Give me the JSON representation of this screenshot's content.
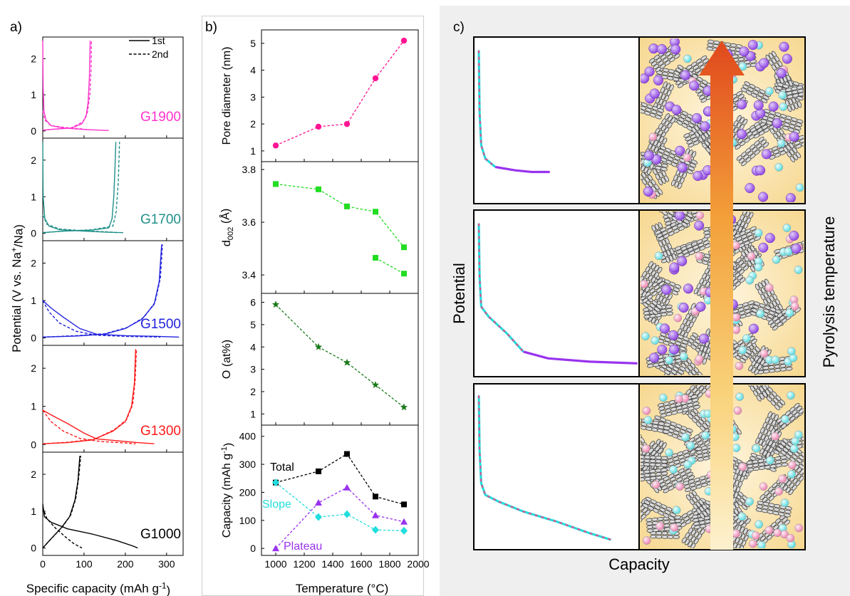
{
  "panel_labels": {
    "a": "a)",
    "b": "b)",
    "c": "c)"
  },
  "colors": {
    "g1900": "#ff33cc",
    "g1700": "#20908a",
    "g1500": "#2222dd",
    "g1300": "#ff1a1a",
    "g1000": "#000000",
    "pore": "#ff1493",
    "d002": "#22dd22",
    "oxygen": "#1a7a1a",
    "total": "#000000",
    "slope": "#22dddd",
    "plateau": "#9933ee",
    "ion_purple": "#9b59e6",
    "ion_cyan": "#7fe8ea",
    "ion_pink": "#f49ac1",
    "arrow_top": "#e0481c",
    "arrow_bottom": "#fbe9b8"
  },
  "chart_data": [
    {
      "id": "panel-a",
      "type": "line",
      "xlabel": "Specific capacity (mAh g",
      "xlabel_sup": "-1",
      "xlabel_end": ")",
      "ylabel": "Potential (V vs. Na",
      "ylabel_sup": "+",
      "ylabel_end": "/Na)",
      "xticks": [
        0,
        100,
        200,
        300
      ],
      "xlim": [
        0,
        340
      ],
      "ylim": [
        -0.2,
        2.6
      ],
      "yticks": [
        0,
        1,
        2
      ],
      "legend": [
        "1st",
        "2nd"
      ],
      "legend_position": "top-right",
      "samples": [
        {
          "name": "G1900",
          "first_discharge": [
            [
              0,
              2.5
            ],
            [
              1,
              1.2
            ],
            [
              3,
              0.55
            ],
            [
              8,
              0.3
            ],
            [
              20,
              0.15
            ],
            [
              50,
              0.08
            ],
            [
              100,
              0.04
            ],
            [
              160,
              0.01
            ]
          ],
          "first_charge": [
            [
              0,
              0.02
            ],
            [
              30,
              0.05
            ],
            [
              70,
              0.08
            ],
            [
              95,
              0.2
            ],
            [
              105,
              0.4
            ],
            [
              110,
              0.8
            ],
            [
              113,
              1.5
            ],
            [
              115,
              2.5
            ]
          ],
          "second_discharge": [
            [
              0,
              0.55
            ],
            [
              5,
              0.3
            ],
            [
              20,
              0.15
            ],
            [
              50,
              0.1
            ],
            [
              80,
              0.07
            ],
            [
              100,
              0.05
            ],
            [
              112,
              0.02
            ]
          ],
          "second_charge": [
            [
              0,
              0.02
            ],
            [
              30,
              0.05
            ],
            [
              70,
              0.09
            ],
            [
              97,
              0.25
            ],
            [
              108,
              0.5
            ],
            [
              114,
              1.0
            ],
            [
              117,
              1.7
            ],
            [
              118,
              2.5
            ]
          ]
        },
        {
          "name": "G1700",
          "first_discharge": [
            [
              0,
              2.5
            ],
            [
              1,
              1.0
            ],
            [
              5,
              0.4
            ],
            [
              15,
              0.2
            ],
            [
              40,
              0.1
            ],
            [
              100,
              0.06
            ],
            [
              160,
              0.03
            ],
            [
              195,
              0.02
            ]
          ],
          "first_charge": [
            [
              0,
              0.02
            ],
            [
              50,
              0.06
            ],
            [
              120,
              0.09
            ],
            [
              160,
              0.15
            ],
            [
              168,
              0.4
            ],
            [
              172,
              1.0
            ],
            [
              175,
              1.8
            ],
            [
              177,
              2.5
            ]
          ],
          "second_discharge": [
            [
              0,
              0.5
            ],
            [
              10,
              0.25
            ],
            [
              40,
              0.12
            ],
            [
              100,
              0.07
            ],
            [
              160,
              0.04
            ],
            [
              180,
              0.02
            ]
          ],
          "second_charge": [
            [
              0,
              0.02
            ],
            [
              50,
              0.06
            ],
            [
              120,
              0.1
            ],
            [
              170,
              0.2
            ],
            [
              178,
              0.6
            ],
            [
              183,
              1.4
            ],
            [
              186,
              2.5
            ]
          ]
        },
        {
          "name": "G1500",
          "first_discharge": [
            [
              0,
              1.0
            ],
            [
              20,
              0.8
            ],
            [
              50,
              0.55
            ],
            [
              90,
              0.25
            ],
            [
              130,
              0.1
            ],
            [
              200,
              0.06
            ],
            [
              280,
              0.04
            ],
            [
              330,
              0.02
            ]
          ],
          "first_charge": [
            [
              0,
              0.02
            ],
            [
              80,
              0.05
            ],
            [
              150,
              0.1
            ],
            [
              200,
              0.25
            ],
            [
              240,
              0.5
            ],
            [
              270,
              0.9
            ],
            [
              282,
              1.5
            ],
            [
              288,
              2.5
            ]
          ],
          "second_discharge": [
            [
              0,
              1.0
            ],
            [
              15,
              0.7
            ],
            [
              40,
              0.4
            ],
            [
              80,
              0.18
            ],
            [
              130,
              0.07
            ],
            [
              200,
              0.04
            ],
            [
              285,
              0.02
            ]
          ],
          "second_charge": [
            [
              0,
              0.02
            ],
            [
              80,
              0.06
            ],
            [
              150,
              0.11
            ],
            [
              205,
              0.28
            ],
            [
              245,
              0.55
            ],
            [
              272,
              0.95
            ],
            [
              285,
              1.6
            ],
            [
              290,
              2.5
            ]
          ]
        },
        {
          "name": "G1300",
          "first_discharge": [
            [
              0,
              0.9
            ],
            [
              25,
              0.75
            ],
            [
              60,
              0.55
            ],
            [
              100,
              0.3
            ],
            [
              130,
              0.15
            ],
            [
              180,
              0.1
            ],
            [
              230,
              0.05
            ],
            [
              270,
              0.02
            ]
          ],
          "first_charge": [
            [
              0,
              0.02
            ],
            [
              60,
              0.05
            ],
            [
              120,
              0.12
            ],
            [
              170,
              0.35
            ],
            [
              200,
              0.6
            ],
            [
              215,
              1.0
            ],
            [
              222,
              1.6
            ],
            [
              225,
              2.5
            ]
          ],
          "second_discharge": [
            [
              0,
              0.9
            ],
            [
              20,
              0.6
            ],
            [
              50,
              0.35
            ],
            [
              90,
              0.16
            ],
            [
              140,
              0.08
            ],
            [
              200,
              0.04
            ],
            [
              225,
              0.02
            ]
          ],
          "second_charge": [
            [
              0,
              0.02
            ],
            [
              60,
              0.06
            ],
            [
              125,
              0.14
            ],
            [
              172,
              0.38
            ],
            [
              203,
              0.65
            ],
            [
              218,
              1.05
            ],
            [
              224,
              1.7
            ],
            [
              227,
              2.5
            ]
          ]
        },
        {
          "name": "G1000",
          "first_discharge": [
            [
              0,
              1.2
            ],
            [
              4,
              0.85
            ],
            [
              20,
              0.7
            ],
            [
              60,
              0.52
            ],
            [
              120,
              0.38
            ],
            [
              180,
              0.2
            ],
            [
              220,
              0.05
            ],
            [
              230,
              0.0
            ]
          ],
          "first_charge": [
            [
              0,
              0.0
            ],
            [
              20,
              0.25
            ],
            [
              45,
              0.55
            ],
            [
              65,
              0.85
            ],
            [
              78,
              1.3
            ],
            [
              85,
              1.8
            ],
            [
              90,
              2.5
            ]
          ],
          "second_discharge": [
            [
              0,
              1.1
            ],
            [
              10,
              0.8
            ],
            [
              30,
              0.55
            ],
            [
              55,
              0.3
            ],
            [
              75,
              0.12
            ],
            [
              95,
              0.0
            ]
          ],
          "second_charge": [
            [
              0,
              0.0
            ],
            [
              22,
              0.27
            ],
            [
              48,
              0.58
            ],
            [
              68,
              0.9
            ],
            [
              80,
              1.35
            ],
            [
              87,
              1.9
            ],
            [
              92,
              2.5
            ]
          ]
        }
      ]
    },
    {
      "id": "panel-b",
      "type": "line",
      "xlabel": "Temperature (°C)",
      "xticks": [
        1000,
        1200,
        1400,
        1600,
        1800,
        2000
      ],
      "xlim": [
        900,
        2000
      ],
      "subplots": [
        {
          "ylabel": "Pore diameter (nm)",
          "ylim": [
            0.6,
            5.5
          ],
          "yticks": [
            1,
            2,
            3,
            4,
            5
          ],
          "marker": "circle",
          "series": [
            {
              "x": [
                1000,
                1300,
                1500,
                1700,
                1900
              ],
              "y": [
                1.2,
                1.9,
                2.0,
                3.7,
                5.1
              ]
            }
          ]
        },
        {
          "ylabel": "d",
          "ylabel_sub": "002",
          "ylabel_end": " (Å)",
          "ylim": [
            3.33,
            3.83
          ],
          "yticks": [
            3.4,
            3.6,
            3.8
          ],
          "marker": "square",
          "series": [
            {
              "x": [
                1000,
                1300,
                1500,
                1700,
                1900
              ],
              "y": [
                3.745,
                3.725,
                3.66,
                3.64,
                3.505
              ]
            },
            {
              "x": [
                1700,
                1900
              ],
              "y": [
                3.465,
                3.405
              ]
            }
          ]
        },
        {
          "ylabel": "O (at%)",
          "ylim": [
            0.5,
            6.4
          ],
          "yticks": [
            1,
            2,
            3,
            4,
            5,
            6
          ],
          "marker": "star",
          "series": [
            {
              "x": [
                1000,
                1300,
                1500,
                1700,
                1900
              ],
              "y": [
                5.9,
                4.0,
                3.3,
                2.3,
                1.3
              ]
            }
          ]
        },
        {
          "ylabel": "Capacity (mAh g",
          "ylabel_sup": "-1",
          "ylabel_end": ")",
          "ylim": [
            -25,
            440
          ],
          "yticks": [
            0,
            100,
            200,
            300,
            400
          ],
          "series": [
            {
              "name": "Total",
              "marker": "square",
              "x": [
                1000,
                1300,
                1500,
                1700,
                1900
              ],
              "y": [
                235,
                275,
                337,
                185,
                157
              ]
            },
            {
              "name": "Slope",
              "marker": "diamond",
              "x": [
                1000,
                1300,
                1500,
                1700,
                1900
              ],
              "y": [
                235,
                112,
                122,
                66,
                63
              ]
            },
            {
              "name": "Plateau",
              "marker": "triangle",
              "x": [
                1000,
                1300,
                1500,
                1700,
                1900
              ],
              "y": [
                0,
                163,
                217,
                118,
                95
              ]
            }
          ]
        }
      ]
    }
  ],
  "panel_c": {
    "ylabel": "Potential",
    "xlabel": "Capacity",
    "arrow_label": "Pyrolysis temperature",
    "curves": [
      {
        "points": [
          [
            0.03,
            0.92
          ],
          [
            0.035,
            0.55
          ],
          [
            0.045,
            0.35
          ],
          [
            0.07,
            0.27
          ],
          [
            0.13,
            0.22
          ],
          [
            0.25,
            0.2
          ],
          [
            0.35,
            0.19
          ],
          [
            0.46,
            0.19
          ]
        ],
        "plateau_from": 0.18
      },
      {
        "points": [
          [
            0.03,
            0.92
          ],
          [
            0.035,
            0.6
          ],
          [
            0.045,
            0.42
          ],
          [
            0.09,
            0.36
          ],
          [
            0.2,
            0.26
          ],
          [
            0.3,
            0.15
          ],
          [
            0.45,
            0.11
          ],
          [
            0.7,
            0.09
          ],
          [
            0.99,
            0.08
          ]
        ],
        "plateau_from": 0.3
      },
      {
        "points": [
          [
            0.03,
            0.93
          ],
          [
            0.035,
            0.6
          ],
          [
            0.045,
            0.4
          ],
          [
            0.07,
            0.33
          ],
          [
            0.15,
            0.29
          ],
          [
            0.3,
            0.23
          ],
          [
            0.5,
            0.17
          ],
          [
            0.7,
            0.1
          ],
          [
            0.83,
            0.06
          ]
        ],
        "plateau_from": 2
      }
    ]
  }
}
